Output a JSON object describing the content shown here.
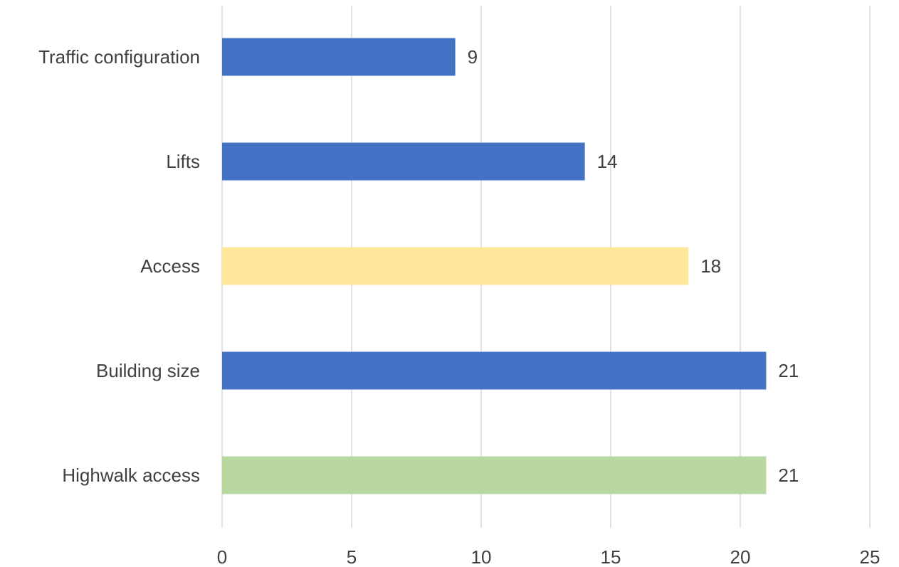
{
  "chart_data": {
    "type": "bar",
    "orientation": "horizontal",
    "categories": [
      "Traffic configuration",
      "Lifts",
      "Access",
      "Building size",
      "Highwalk access"
    ],
    "values": [
      9,
      14,
      18,
      21,
      21
    ],
    "bar_colors": [
      "#4472C4",
      "#4472C4",
      "#FFE699",
      "#4472C4",
      "#B8D8A0"
    ],
    "data_labels": [
      "9",
      "14",
      "18",
      "21",
      "21"
    ],
    "xlim": [
      0,
      25
    ],
    "x_ticks": [
      0,
      5,
      10,
      15,
      20,
      25
    ],
    "x_tick_labels": [
      "0",
      "5",
      "10",
      "15",
      "20",
      "25"
    ],
    "grid": true,
    "gridline_color": "#D9D9D9",
    "text_color": "#404040",
    "title": "",
    "xlabel": "",
    "ylabel": ""
  }
}
